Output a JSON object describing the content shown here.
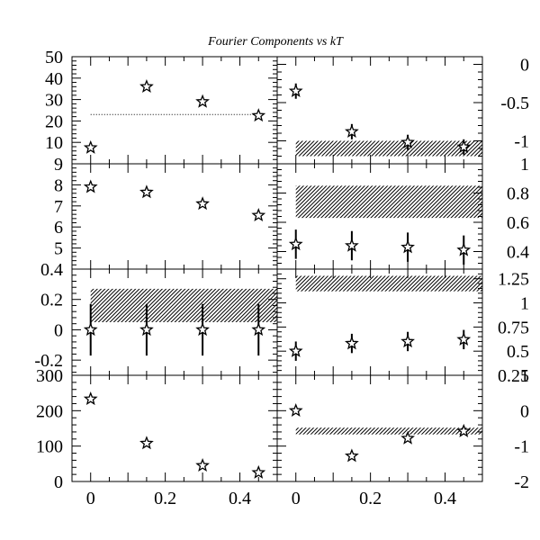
{
  "title": "Fourier Components vs kT",
  "chart_data": [
    {
      "type": "scatter",
      "panel": "left-1",
      "x": [
        0,
        0.15,
        0.3,
        0.45
      ],
      "y": [
        7.5,
        36,
        29,
        22.5
      ],
      "xlim": [
        -0.05,
        0.5
      ],
      "ylim": [
        0,
        50
      ],
      "yticks": [
        10,
        20,
        30,
        40,
        50
      ],
      "ytick_labels": [
        "10",
        "20",
        "30",
        "40",
        "50"
      ],
      "reference_line": {
        "from": 0,
        "to": 0.45,
        "y": 23,
        "style": "dotted"
      }
    },
    {
      "type": "scatter",
      "panel": "left-2",
      "x": [
        0,
        0.15,
        0.3,
        0.45
      ],
      "y": [
        7.9,
        7.65,
        7.1,
        6.55
      ],
      "xlim": [
        -0.05,
        0.5
      ],
      "ylim": [
        4,
        9
      ],
      "yticks": [
        5,
        6,
        7,
        8,
        9
      ],
      "ytick_labels": [
        "5",
        "6",
        "7",
        "8",
        "9"
      ]
    },
    {
      "type": "scatter",
      "panel": "left-3",
      "x": [
        0,
        0.15,
        0.3,
        0.45
      ],
      "y": [
        0,
        0,
        0,
        0
      ],
      "yerr": [
        0.17,
        0.17,
        0.17,
        0.17
      ],
      "xlim": [
        -0.05,
        0.5
      ],
      "ylim": [
        -0.3,
        0.4
      ],
      "yticks": [
        -0.2,
        0,
        0.2,
        0.4
      ],
      "ytick_labels": [
        "-0.2",
        "0",
        "0.2",
        "0.4"
      ],
      "band": {
        "from": 0,
        "to": 0.5,
        "y_low": 0.05,
        "y_high": 0.27
      }
    },
    {
      "type": "scatter",
      "panel": "left-4",
      "x": [
        0,
        0.15,
        0.3,
        0.45
      ],
      "y": [
        233,
        108,
        45,
        25
      ],
      "xlim": [
        -0.05,
        0.5
      ],
      "ylim": [
        0,
        300
      ],
      "yticks": [
        0,
        100,
        200,
        300
      ],
      "ytick_labels": [
        "0",
        "100",
        "200",
        "300"
      ],
      "xticks": [
        0,
        0.2,
        0.4
      ],
      "xtick_labels": [
        "0",
        "0.2",
        "0.4"
      ]
    },
    {
      "type": "scatter",
      "panel": "right-1",
      "x": [
        0,
        0.15,
        0.3,
        0.45
      ],
      "y": [
        -0.35,
        -0.88,
        -1.02,
        -1.08
      ],
      "yerr": [
        0.1,
        0.1,
        0.1,
        0.1
      ],
      "xlim": [
        -0.05,
        0.5
      ],
      "ylim": [
        -1.3,
        0.1
      ],
      "yticks": [
        -1,
        -0.5,
        0
      ],
      "ytick_labels": [
        "-1",
        "-0.5",
        "0"
      ],
      "band": {
        "from": 0,
        "to": 0.5,
        "y_low": -1.2,
        "y_high": -1.0
      }
    },
    {
      "type": "scatter",
      "panel": "right-2",
      "x": [
        0,
        0.15,
        0.3,
        0.45
      ],
      "y": [
        0.45,
        0.44,
        0.43,
        0.41
      ],
      "yerr": [
        0.1,
        0.1,
        0.1,
        0.1
      ],
      "xlim": [
        -0.05,
        0.5
      ],
      "ylim": [
        0.28,
        1.0
      ],
      "yticks": [
        0.4,
        0.6,
        0.8,
        1.0
      ],
      "ytick_labels": [
        "0.4",
        "0.6",
        "0.8",
        "1"
      ],
      "band": {
        "from": 0,
        "to": 0.5,
        "y_low": 0.63,
        "y_high": 0.85
      }
    },
    {
      "type": "scatter",
      "panel": "right-3",
      "x": [
        0,
        0.15,
        0.3,
        0.45
      ],
      "y": [
        0.5,
        0.58,
        0.6,
        0.62
      ],
      "yerr": [
        0.1,
        0.1,
        0.1,
        0.1
      ],
      "xlim": [
        -0.05,
        0.5
      ],
      "ylim": [
        0.25,
        1.35
      ],
      "yticks": [
        0.25,
        0.5,
        0.75,
        1.0,
        1.25
      ],
      "ytick_labels": [
        "0.25",
        "0.5",
        "0.75",
        "1",
        "1.25"
      ],
      "band": {
        "from": 0,
        "to": 0.5,
        "y_low": 1.12,
        "y_high": 1.28
      }
    },
    {
      "type": "scatter",
      "panel": "right-4",
      "x": [
        0,
        0.15,
        0.3,
        0.45
      ],
      "y": [
        0,
        -1.28,
        -0.78,
        -0.58
      ],
      "xlim": [
        -0.05,
        0.5
      ],
      "ylim": [
        -2,
        1
      ],
      "yticks": [
        -2,
        -1,
        0,
        1
      ],
      "ytick_labels": [
        "-2",
        "-1",
        "0",
        "1"
      ],
      "xticks": [
        0,
        0.2,
        0.4
      ],
      "xtick_labels": [
        "0",
        "0.2",
        "0.4"
      ],
      "band": {
        "from": 0,
        "to": 0.5,
        "y_low": -0.67,
        "y_high": -0.48
      }
    }
  ]
}
